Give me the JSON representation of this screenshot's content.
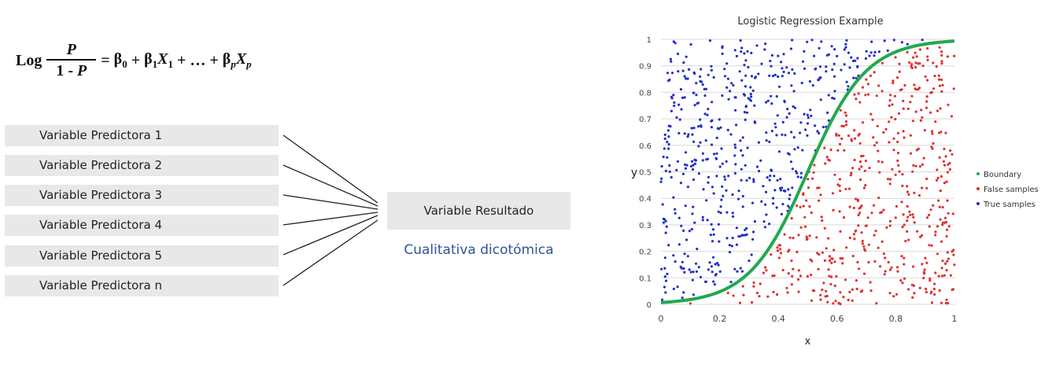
{
  "formula": {
    "lhs": "Log",
    "numerator": "P",
    "denominator_prefix": "1 - ",
    "denominator_var": "P",
    "equals": "=",
    "b0": "β",
    "b0_sub": "0",
    "plus1": " + ",
    "b1": "β",
    "b1_sub": "1",
    "x1": "X",
    "x1_sub": "1",
    "mid": " + … + ",
    "bp": "β",
    "bp_sub": "p",
    "xp": "X",
    "xp_sub": "p"
  },
  "diagram": {
    "predictors": [
      "Variable Predictora 1",
      "Variable Predictora 2",
      "Variable Predictora 3",
      "Variable Predictora 4",
      "Variable Predictora 5",
      "Variable Predictora n"
    ],
    "result_label": "Variable Resultado",
    "result_type": "Cualitativa dicotómica"
  },
  "chart_data": {
    "type": "scatter",
    "title": "Logistic Regression Example",
    "xlabel": "x",
    "ylabel": "y",
    "xlim": [
      0,
      1
    ],
    "ylim": [
      0,
      1
    ],
    "xticks": [
      "0",
      "0.2",
      "0.4",
      "0.6",
      "0.8",
      "1"
    ],
    "yticks": [
      "0",
      "0.1",
      "0.2",
      "0.3",
      "0.4",
      "0.5",
      "0.6",
      "0.7",
      "0.8",
      "0.9",
      "1"
    ],
    "grid": "horizontal",
    "legend_position": "right",
    "series": [
      {
        "name": "Boundary",
        "color": "#22a84f",
        "kind": "sigmoid",
        "center": 0.5,
        "steepness": 10
      },
      {
        "name": "False samples",
        "color": "#e03030",
        "kind": "points",
        "region": "below-boundary",
        "count": 520
      },
      {
        "name": "True samples",
        "color": "#2030c8",
        "kind": "points",
        "region": "above-boundary",
        "count": 520
      }
    ]
  }
}
